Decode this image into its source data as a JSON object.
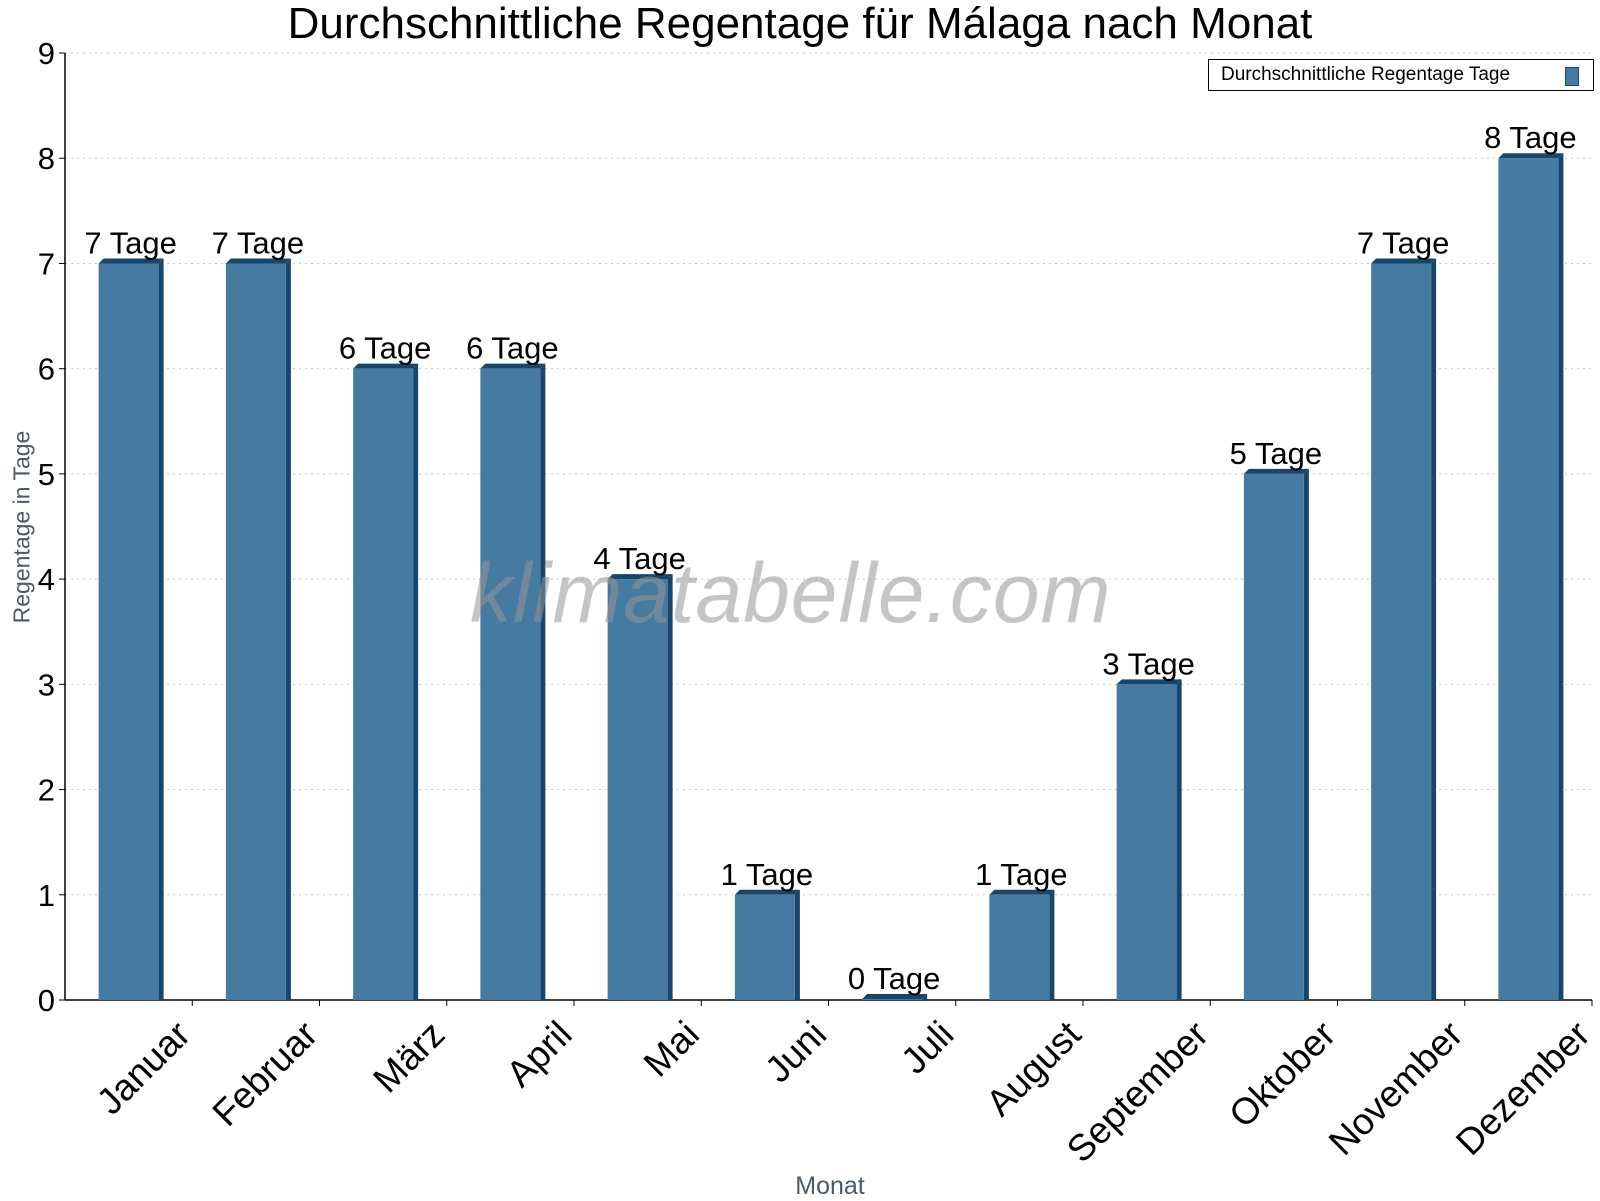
{
  "chart_data": {
    "type": "bar",
    "title": "Durchschnittliche Regentage für Málaga nach Monat",
    "xlabel": "Monat",
    "ylabel": "Regentage in Tage",
    "categories": [
      "Januar",
      "Februar",
      "März",
      "April",
      "Mai",
      "Juni",
      "Juli",
      "August",
      "September",
      "Oktober",
      "November",
      "Dezember"
    ],
    "series": [
      {
        "name": "Durchschnittliche Regentage Tage",
        "values": [
          7,
          7,
          6,
          6,
          4,
          1,
          0,
          1,
          3,
          5,
          7,
          8
        ],
        "color": "#457ba0"
      }
    ],
    "data_labels": [
      "7 Tage",
      "7 Tage",
      "6 Tage",
      "6 Tage",
      "4 Tage",
      "1 Tage",
      "0 Tage",
      "1 Tage",
      "3 Tage",
      "5 Tage",
      "7 Tage",
      "8 Tage"
    ],
    "ylim": [
      0,
      9
    ],
    "yticks": [
      0,
      1,
      2,
      3,
      4,
      5,
      6,
      7,
      8,
      9
    ],
    "grid": true,
    "legend_position": "top-right"
  },
  "watermark": "klimatabelle.com",
  "colors": {
    "bar": "#457ba0",
    "bar_edge": "#17466a",
    "grid": "#c8c8c8"
  }
}
